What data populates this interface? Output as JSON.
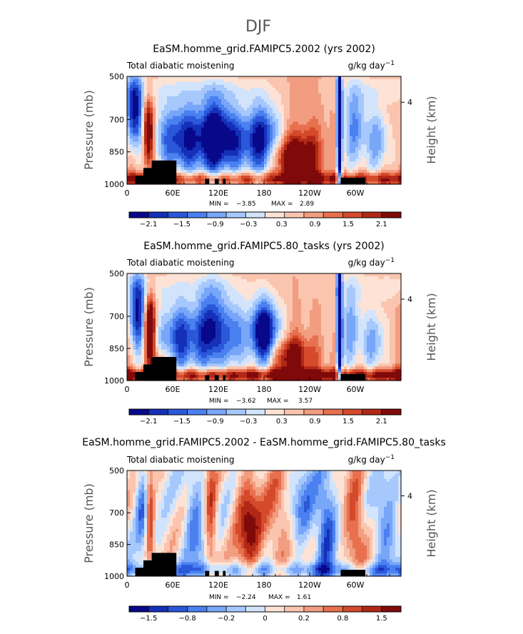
{
  "figure": {
    "title": "DJF"
  },
  "colors": [
    "#08088a",
    "#1530b8",
    "#2a58d8",
    "#4a80f0",
    "#78a6f8",
    "#a6c8fc",
    "#d2e4fc",
    "#fde3d6",
    "#fac4ae",
    "#f29c80",
    "#e8704e",
    "#d44a2a",
    "#b22816",
    "#800a0a"
  ],
  "chart_data": [
    {
      "type": "heatmap",
      "title": "EaSM.homme_grid.FAMIPC5.2002 (yrs 2002)",
      "subtitle_left": "Total diabatic moistening",
      "units": "g/kg day",
      "units_exp": "−1",
      "xlabel": "",
      "ylabel": "Pressure (mb)",
      "ylabel_right": "Height (km)",
      "xlim": [
        0,
        360
      ],
      "ylim": [
        1000,
        500
      ],
      "x_ticks": [
        "0",
        "60E",
        "120E",
        "180",
        "120W",
        "60W"
      ],
      "y_ticks": [
        "500",
        "700",
        "850",
        "1000"
      ],
      "right_ticks": [
        "4"
      ],
      "min_label": "MIN =",
      "min": "−3.85",
      "max_label": "MAX =",
      "max": "2.89",
      "colorbar_labels": [
        "−2.1",
        "−1.5",
        "−0.9",
        "−0.3",
        "0.3",
        "0.9",
        "1.5",
        "2.1"
      ]
    },
    {
      "type": "heatmap",
      "title": "EaSM.homme_grid.FAMIPC5.80_tasks (yrs 2002)",
      "subtitle_left": "Total diabatic moistening",
      "units": "g/kg day",
      "units_exp": "−1",
      "xlabel": "",
      "ylabel": "Pressure (mb)",
      "ylabel_right": "Height (km)",
      "xlim": [
        0,
        360
      ],
      "ylim": [
        1000,
        500
      ],
      "x_ticks": [
        "0",
        "60E",
        "120E",
        "180",
        "120W",
        "60W"
      ],
      "y_ticks": [
        "500",
        "700",
        "850",
        "1000"
      ],
      "right_ticks": [
        "4"
      ],
      "min_label": "MIN =",
      "min": "−3.62",
      "max_label": "MAX =",
      "max": "3.57",
      "colorbar_labels": [
        "−2.1",
        "−1.5",
        "−0.9",
        "−0.3",
        "0.3",
        "0.9",
        "1.5",
        "2.1"
      ]
    },
    {
      "type": "heatmap",
      "title": "EaSM.homme_grid.FAMIPC5.2002 - EaSM.homme_grid.FAMIPC5.80_tasks",
      "subtitle_left": "Total diabatic moistening",
      "units": "g/kg day",
      "units_exp": "−1",
      "xlabel": "",
      "ylabel": "Pressure (mb)",
      "ylabel_right": "Height (km)",
      "xlim": [
        0,
        360
      ],
      "ylim": [
        1000,
        500
      ],
      "x_ticks": [
        "0",
        "60E",
        "120E",
        "180",
        "120W",
        "60W"
      ],
      "y_ticks": [
        "500",
        "700",
        "850",
        "1000"
      ],
      "right_ticks": [
        "4"
      ],
      "min_label": "MIN =",
      "min": "−2.24",
      "max_label": "MAX =",
      "max": "1.61",
      "colorbar_labels": [
        "−1.5",
        "−0.8",
        "−0.2",
        "0",
        "0.2",
        "0.8",
        "1.5"
      ]
    }
  ]
}
